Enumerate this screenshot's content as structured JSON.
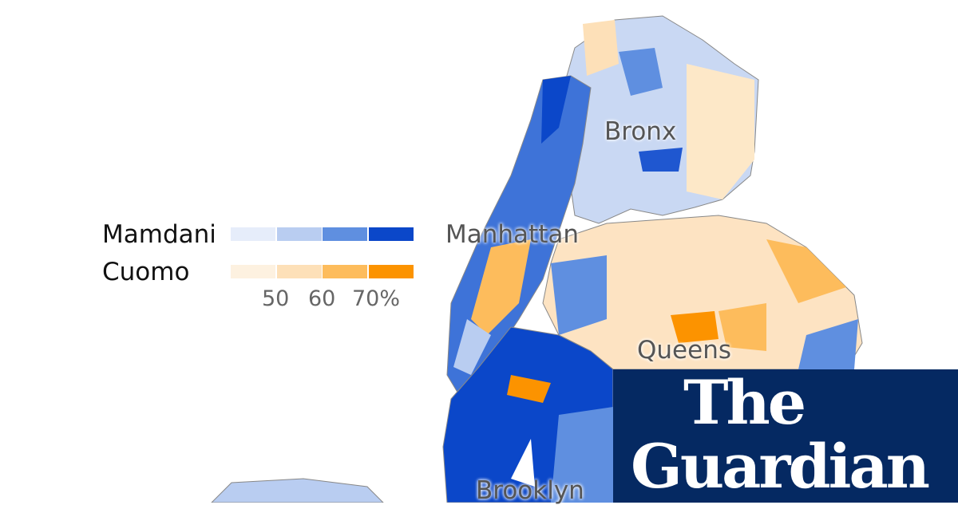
{
  "map": {
    "borough_labels": [
      "Bronx",
      "Manhattan",
      "Queens",
      "Brooklyn"
    ],
    "colors": {
      "background": "#ffffff",
      "no_data": "#f3f3f3",
      "border": "#888888"
    }
  },
  "legend": {
    "series": [
      {
        "name": "Mamdani",
        "colors": [
          "#e6edfa",
          "#b9cdf1",
          "#5f8fe0",
          "#0b47c9"
        ]
      },
      {
        "name": "Cuomo",
        "colors": [
          "#fdf1e0",
          "#fde0b8",
          "#fdbc5c",
          "#fc9300"
        ]
      }
    ],
    "ticks": [
      "50",
      "60",
      "70%"
    ]
  },
  "logo": {
    "line1": "The",
    "line2": "Guardian",
    "background": "#052962"
  }
}
